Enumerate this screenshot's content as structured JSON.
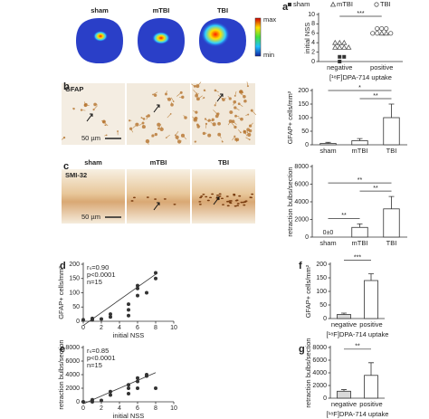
{
  "micrographs": {
    "a": {
      "labels": [
        "sham",
        "mTBI",
        "TBI"
      ],
      "colorbar": [
        "max",
        "min"
      ]
    },
    "b": {
      "stain": "GFAP",
      "scale": "50 µm"
    },
    "c": {
      "labels": [
        "sham",
        "mTBI",
        "TBI"
      ],
      "stain": "SMI-32",
      "scale": "50 µm"
    }
  },
  "chart_data": [
    {
      "type": "strip",
      "panel": "a",
      "ylabel": "initial NSS",
      "xlabel": "[¹⁸F]DPA-714 uptake",
      "categories": [
        "negative",
        "positive"
      ],
      "series": [
        {
          "name": "sham",
          "marker": "square",
          "color": "#333333",
          "categories": [
            "negative",
            "negative",
            "negative"
          ],
          "values": [
            1,
            1,
            0
          ]
        },
        {
          "name": "mTBI",
          "marker": "triangle",
          "color": "#555555",
          "categories": [
            "negative",
            "negative",
            "negative",
            "negative",
            "negative",
            "negative",
            "negative",
            "positive",
            "positive"
          ],
          "values": [
            4,
            4,
            4,
            3,
            3,
            3,
            3,
            6,
            6
          ]
        },
        {
          "name": "TBI",
          "marker": "circle",
          "color": "#555555",
          "categories": [
            "positive",
            "positive",
            "positive",
            "positive",
            "positive",
            "positive"
          ],
          "values": [
            7,
            7,
            7,
            6,
            6,
            6
          ]
        }
      ],
      "ylim": [
        0,
        10
      ],
      "yticks": [
        0,
        2,
        4,
        6,
        8,
        10
      ],
      "significance": [
        "***"
      ]
    },
    {
      "type": "bar",
      "panel": "b",
      "ylabel": "GFAP+ cells/mm²",
      "categories": [
        "sham",
        "mTBI",
        "TBI"
      ],
      "values": [
        5,
        15,
        100
      ],
      "errors": [
        4,
        8,
        50
      ],
      "colors": [
        "#ffffff",
        "#ffffff",
        "#ffffff"
      ],
      "ylim": [
        0,
        200
      ],
      "yticks": [
        0,
        50,
        100,
        150,
        200
      ],
      "significance": [
        "*",
        "**"
      ]
    },
    {
      "type": "bar",
      "panel": "c",
      "ylabel": "retraction bulbs/section",
      "categories": [
        "sham",
        "mTBI",
        "TBI"
      ],
      "values": [
        0,
        1100,
        3200
      ],
      "value_labels": [
        "0±0",
        null,
        null
      ],
      "errors": [
        0,
        400,
        1400
      ],
      "colors": [
        "#ffffff",
        "#ffffff",
        "#ffffff"
      ],
      "ylim": [
        0,
        8000
      ],
      "yticks": [
        0,
        2000,
        4000,
        6000,
        8000
      ],
      "significance": [
        "**",
        "**",
        "**"
      ]
    },
    {
      "type": "scatter",
      "panel": "d",
      "ylabel": "GFAP+ cells/mm²",
      "xlabel": "initial NSS",
      "stats": [
        "rₛ=0.90",
        "p<0.0001",
        "n=15"
      ],
      "x": [
        0,
        1,
        1,
        2,
        3,
        3,
        5,
        5,
        5,
        6,
        6,
        6,
        7,
        8,
        8
      ],
      "values": [
        5,
        5,
        10,
        8,
        15,
        25,
        20,
        40,
        60,
        90,
        115,
        125,
        100,
        150,
        170
      ],
      "fit_line": {
        "x": [
          0,
          8
        ],
        "y": [
          -15,
          165
        ]
      },
      "xlim": [
        0,
        10
      ],
      "xticks": [
        0,
        2,
        4,
        6,
        8,
        10
      ],
      "ylim": [
        0,
        200
      ],
      "yticks": [
        0,
        50,
        100,
        150,
        200
      ]
    },
    {
      "type": "scatter",
      "panel": "e",
      "ylabel": "retraction bulbs/section",
      "xlabel": "initial NSS",
      "stats": [
        "rₛ=0.85",
        "p<0.0001",
        "n=15"
      ],
      "x": [
        0,
        1,
        1,
        2,
        3,
        3,
        5,
        5,
        5,
        6,
        6,
        6,
        7,
        7,
        8
      ],
      "values": [
        0,
        0,
        300,
        200,
        1000,
        1500,
        1200,
        2000,
        2500,
        2000,
        3000,
        3500,
        4000,
        3800,
        2000
      ],
      "fit_line": {
        "x": [
          0,
          8
        ],
        "y": [
          -300,
          4300
        ]
      },
      "xlim": [
        0,
        10
      ],
      "xticks": [
        0,
        2,
        4,
        6,
        8,
        10
      ],
      "ylim": [
        0,
        8000
      ],
      "yticks": [
        0,
        2000,
        4000,
        6000,
        8000
      ]
    },
    {
      "type": "bar",
      "panel": "f",
      "ylabel": "GFAP+ cells/mm²",
      "xlabel": "[¹⁸F]DPA-714 uptake",
      "categories": [
        "negative",
        "positive"
      ],
      "values": [
        15,
        140
      ],
      "errors": [
        5,
        25
      ],
      "colors": [
        "#d9d9d9",
        "#ffffff"
      ],
      "ylim": [
        0,
        200
      ],
      "yticks": [
        0,
        50,
        100,
        150,
        200
      ],
      "significance": [
        "***"
      ]
    },
    {
      "type": "bar",
      "panel": "g",
      "ylabel": "retraction bulbs/section",
      "xlabel": "[¹⁸F]DPA-714 uptake",
      "categories": [
        "negative",
        "positive"
      ],
      "values": [
        1100,
        3600
      ],
      "errors": [
        250,
        2000
      ],
      "colors": [
        "#d9d9d9",
        "#ffffff"
      ],
      "ylim": [
        0,
        8000
      ],
      "yticks": [
        0,
        2000,
        4000,
        6000,
        8000
      ],
      "significance": [
        "**"
      ]
    }
  ]
}
